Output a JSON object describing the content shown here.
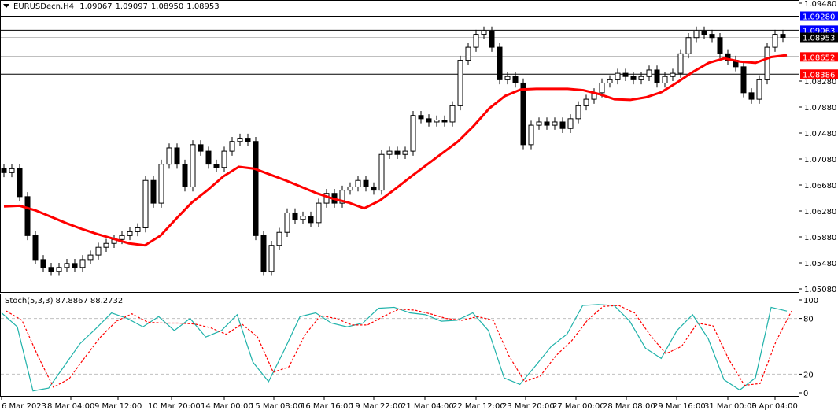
{
  "header": {
    "symbol": "EURUSDecn,H4",
    "open": "1.09067",
    "high": "1.09097",
    "low": "1.08950",
    "close": "1.08953"
  },
  "price_axis": {
    "ticks": [
      "1.09480",
      "1.08280",
      "1.07880",
      "1.07480",
      "1.07080",
      "1.06680",
      "1.06280",
      "1.05880",
      "1.05480",
      "1.05080"
    ],
    "range": [
      1.0508,
      1.0948
    ],
    "levels": [
      {
        "label": "1.09280",
        "value": 1.0928,
        "color": "#0000ff",
        "line": "#000000"
      },
      {
        "label": "1.09063",
        "value": 1.09063,
        "color": "#0000ff",
        "line": "#000000"
      },
      {
        "label": "1.08953",
        "value": 1.08953,
        "color": "#000000",
        "line": "#c0c0c0"
      },
      {
        "label": "1.08652",
        "value": 1.08652,
        "color": "#ff0000",
        "line": "#000000"
      },
      {
        "label": "1.08386",
        "value": 1.08386,
        "color": "#ff0000",
        "line": "#000000"
      }
    ]
  },
  "time_axis": {
    "labels": [
      "6 Mar 2023",
      "8 Mar 04:00",
      "9 Mar 12:00",
      "10 Mar 20:00",
      "14 Mar 00:00",
      "15 Mar 08:00",
      "16 Mar 16:00",
      "19 Mar 22:00",
      "21 Mar 04:00",
      "22 Mar 12:00",
      "23 Mar 20:00",
      "27 Mar 00:00",
      "28 Mar 08:00",
      "29 Mar 16:00",
      "31 Mar 00:00",
      "3 Apr 04:00"
    ]
  },
  "stochastic": {
    "title": "Stoch(5,3,3)",
    "main_value": "87.8867",
    "signal_value": "88.2732",
    "axis_ticks": [
      "100",
      "80",
      "20",
      "0"
    ],
    "levels": [
      80,
      20
    ],
    "main_color": "#20b2aa",
    "signal_color": "#ff0000"
  },
  "colors": {
    "ma": "#ff0000",
    "candle": "#000000"
  },
  "chart_data": [
    {
      "type": "candlestick",
      "title": "EURUSDecn,H4",
      "ylim": [
        1.0508,
        1.0948
      ],
      "closes": [
        1.0687,
        1.0693,
        1.065,
        1.059,
        1.0553,
        1.0541,
        1.0535,
        1.0541,
        1.0547,
        1.0541,
        1.0553,
        1.056,
        1.0572,
        1.0578,
        1.0584,
        1.059,
        1.0596,
        1.0602,
        1.0675,
        1.064,
        1.07,
        1.0725,
        1.07,
        1.0665,
        1.073,
        1.072,
        1.07,
        1.0695,
        1.072,
        1.0735,
        1.074,
        1.0735,
        1.059,
        1.0535,
        1.0575,
        1.0595,
        1.0625,
        1.0615,
        1.062,
        1.061,
        1.064,
        1.0655,
        1.064,
        1.066,
        1.0665,
        1.0675,
        1.0665,
        1.066,
        1.0715,
        1.072,
        1.0715,
        1.072,
        1.0775,
        1.077,
        1.0765,
        1.0768,
        1.0765,
        1.079,
        1.086,
        1.088,
        1.09,
        1.0905,
        1.088,
        1.083,
        1.0835,
        1.0825,
        1.073,
        1.076,
        1.0765,
        1.076,
        1.0765,
        1.0755,
        1.077,
        1.079,
        1.08,
        1.081,
        1.0825,
        1.083,
        1.084,
        1.0835,
        1.083,
        1.0835,
        1.0845,
        1.0825,
        1.0835,
        1.084,
        1.087,
        1.0895,
        1.0905,
        1.09,
        1.0895,
        1.087,
        1.086,
        1.085,
        1.081,
        1.08,
        1.083,
        1.088,
        1.09,
        1.08953
      ],
      "ma": [
        1.0635,
        1.0636,
        1.0629,
        1.0619,
        1.0609,
        1.06,
        1.0592,
        1.0585,
        1.0578,
        1.0575,
        1.059,
        1.0616,
        1.0641,
        1.066,
        1.0681,
        1.0696,
        1.0693,
        1.0684,
        1.0675,
        1.0665,
        1.0655,
        1.0647,
        1.0641,
        1.0632,
        1.0644,
        1.0662,
        1.0681,
        1.0699,
        1.0717,
        1.0735,
        1.0759,
        1.0786,
        1.0805,
        1.0815,
        1.0816,
        1.0816,
        1.0816,
        1.0814,
        1.0808,
        1.08,
        1.0799,
        1.0803,
        1.0811,
        1.0826,
        1.0842,
        1.0856,
        1.0863,
        1.0858,
        1.0856,
        1.0865,
        1.0868
      ]
    },
    {
      "type": "line",
      "title": "Stoch(5,3,3)",
      "ylim": [
        0,
        100
      ],
      "series": [
        {
          "values": [
            86,
            71,
            2,
            5,
            29,
            53,
            69,
            86,
            80,
            71,
            82,
            67,
            80,
            60,
            67,
            84,
            33,
            12,
            46,
            82,
            86,
            75,
            71,
            75,
            91,
            92,
            86,
            84,
            77,
            78,
            86,
            67,
            16,
            9,
            29,
            50,
            63,
            94,
            95,
            94,
            77,
            48,
            37,
            67,
            84,
            58,
            14,
            3,
            16,
            92,
            88
          ]
        },
        {
          "values": [
            88,
            78,
            40,
            6,
            15,
            38,
            60,
            77,
            85,
            76,
            75,
            75,
            74,
            70,
            63,
            74,
            60,
            22,
            28,
            62,
            83,
            80,
            73,
            73,
            82,
            90,
            89,
            85,
            80,
            78,
            82,
            78,
            40,
            12,
            18,
            40,
            56,
            78,
            93,
            94,
            86,
            62,
            42,
            50,
            75,
            72,
            36,
            8,
            10,
            55,
            88
          ]
        }
      ]
    }
  ]
}
